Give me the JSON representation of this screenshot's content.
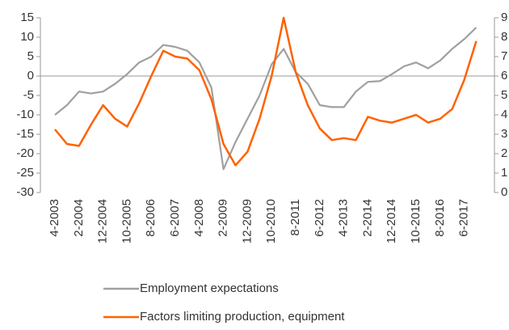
{
  "chart_data": {
    "type": "line",
    "categories": [
      "4-2003",
      null,
      "2-2004",
      null,
      "12-2004",
      null,
      "10-2005",
      null,
      "8-2006",
      null,
      "6-2007",
      null,
      "4-2008",
      null,
      "2-2009",
      null,
      "12-2009",
      null,
      "10-2010",
      null,
      "8-2011",
      null,
      "6-2012",
      null,
      "4-2013",
      null,
      "2-2014",
      null,
      "12-2014",
      null,
      "10-2015",
      null,
      "8-2016",
      null,
      "6-2017",
      null
    ],
    "series": [
      {
        "name": "Employment expectations",
        "color": "#a0a0a0",
        "values": [
          -10,
          -7.5,
          -4,
          -4.5,
          -4,
          -2,
          0.5,
          3.5,
          5,
          8,
          7.5,
          6.5,
          3.5,
          -3,
          -24,
          -17,
          -11,
          -5,
          3,
          7,
          1,
          -2,
          -7.5,
          -8,
          -8,
          -4,
          -1.5,
          -1.3,
          0.5,
          2.5,
          3.5,
          2,
          4,
          7,
          9.5,
          12.5
        ]
      },
      {
        "name": "Factors limiting production, equipment",
        "color": "#ff6200",
        "axis": "y2",
        "values": [
          3.25,
          2.5,
          2.4,
          3.5,
          4.5,
          3.8,
          3.4,
          4.6,
          6,
          7.3,
          7,
          6.9,
          6.3,
          4.8,
          2.5,
          1.4,
          2.1,
          3.8,
          6,
          9,
          6.2,
          4.5,
          3.3,
          2.7,
          2.8,
          2.7,
          3.9,
          3.7,
          3.6,
          3.8,
          4,
          3.6,
          3.8,
          4.3,
          5.8,
          7.8
        ]
      }
    ],
    "ylim": [
      -30,
      15
    ],
    "yticks": [
      -30,
      -25,
      -20,
      -15,
      -10,
      -5,
      0,
      5,
      10,
      15
    ],
    "y2lim": [
      0,
      9
    ],
    "y2ticks": [
      0,
      1,
      2,
      3,
      4,
      5,
      6,
      7,
      8,
      9
    ],
    "legend": "bottom"
  }
}
